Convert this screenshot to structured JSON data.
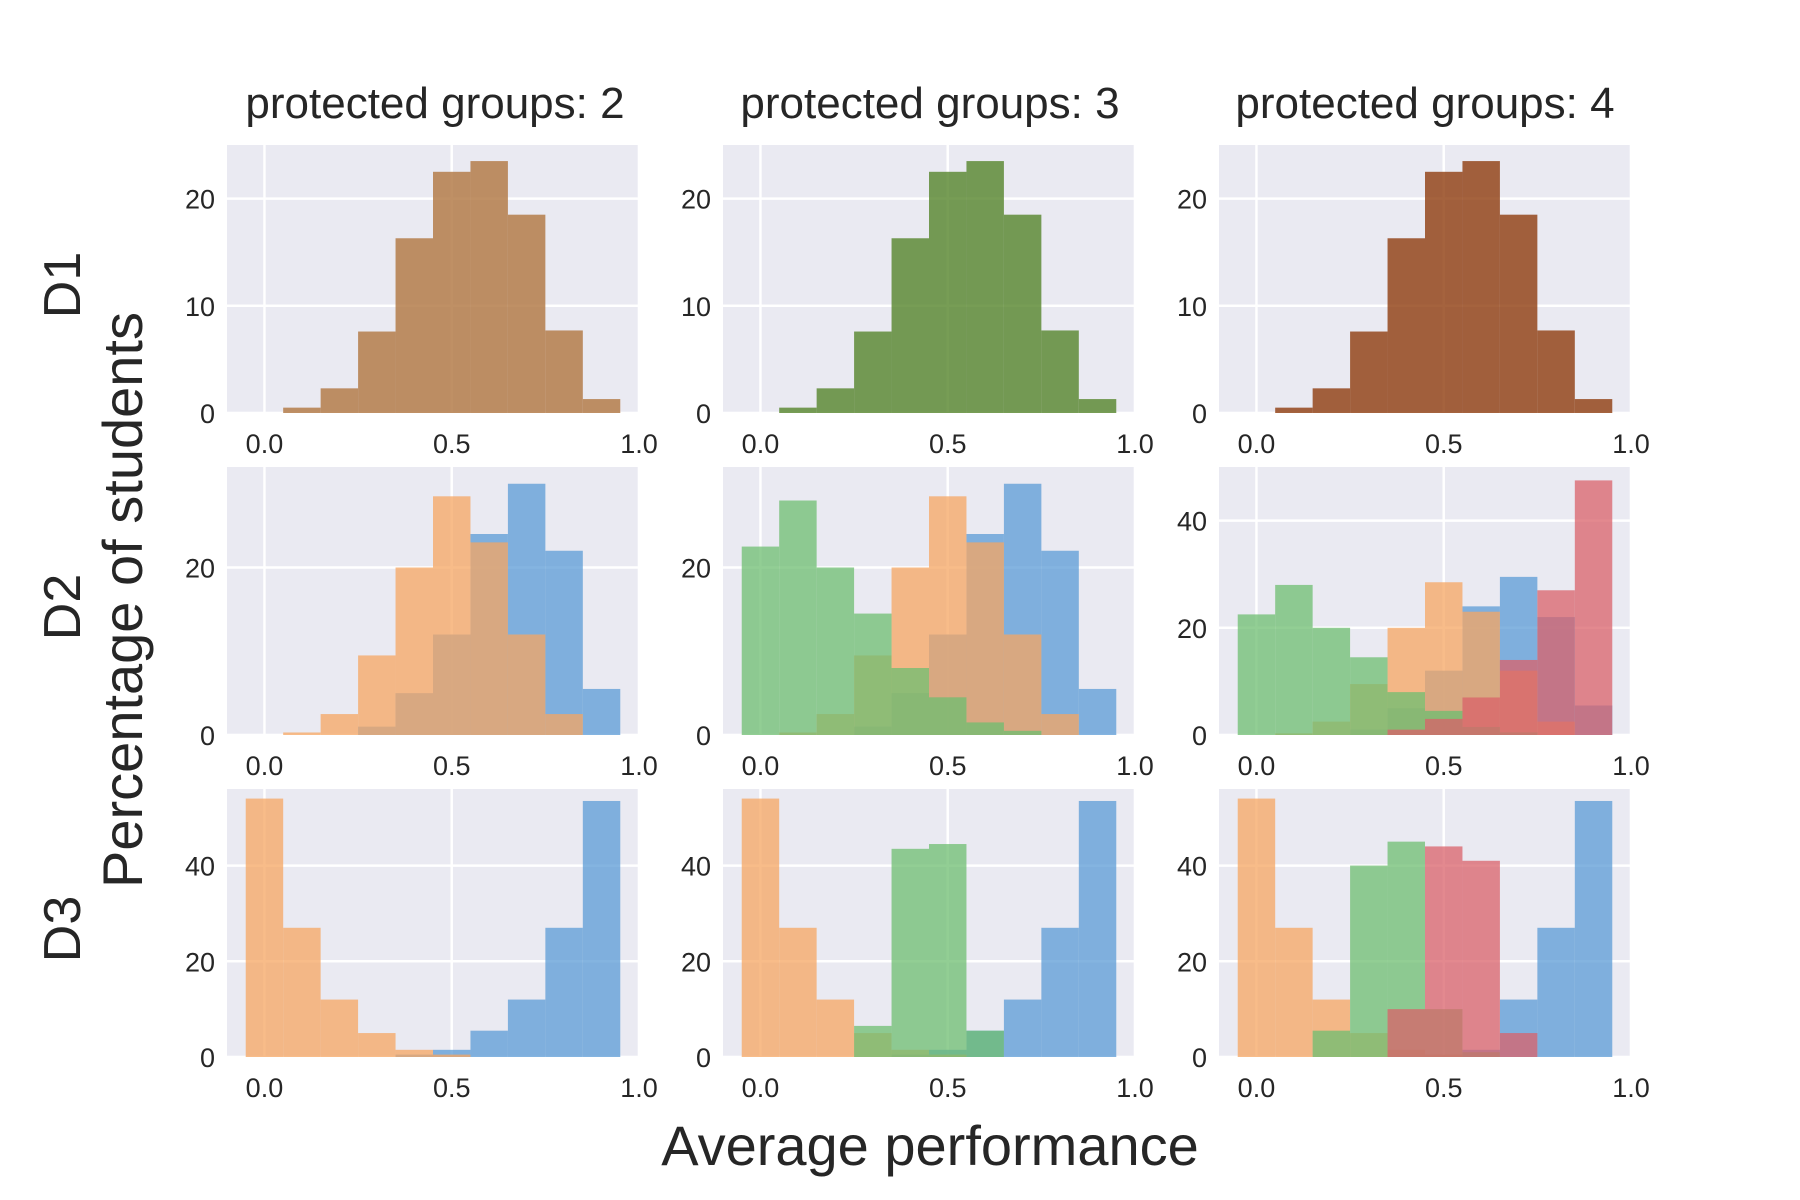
{
  "figure": {
    "xlabel": "Average performance",
    "ylabel": "Percentage of students",
    "column_titles": [
      "protected groups: 2",
      "protected groups: 3",
      "protected groups: 4"
    ],
    "row_labels": [
      "D1",
      "D2",
      "D3"
    ]
  },
  "colors": {
    "blue": "#5b9bd5",
    "orange": "#f5a662",
    "green": "#6dbd70",
    "red": "#d9626a",
    "d1_brown": "#b47c4a",
    "d1_green": "#55852a",
    "d1_sienna": "#8e3c0e"
  },
  "chart_data": [
    {
      "type": "bar",
      "row": "D1",
      "column": "protected groups: 2",
      "xlim": [
        -0.1,
        1.0
      ],
      "ylim": [
        0,
        25
      ],
      "xticks": [
        "0.0",
        "0.5",
        "1.0"
      ],
      "yticks": [
        "0",
        "10",
        "20"
      ],
      "series": [
        {
          "name": "all",
          "color": "d1_brown",
          "opacity": 0.85,
          "bins": [
            [
              0.05,
              0.15,
              0.5
            ],
            [
              0.15,
              0.25,
              2.3
            ],
            [
              0.25,
              0.35,
              7.6
            ],
            [
              0.35,
              0.45,
              16.3
            ],
            [
              0.45,
              0.55,
              22.5
            ],
            [
              0.55,
              0.65,
              23.5
            ],
            [
              0.65,
              0.75,
              18.5
            ],
            [
              0.75,
              0.85,
              7.7
            ],
            [
              0.85,
              0.95,
              1.3
            ]
          ]
        }
      ]
    },
    {
      "type": "bar",
      "row": "D1",
      "column": "protected groups: 3",
      "xlim": [
        -0.1,
        1.0
      ],
      "ylim": [
        0,
        25
      ],
      "xticks": [
        "0.0",
        "0.5",
        "1.0"
      ],
      "yticks": [
        "0",
        "10",
        "20"
      ],
      "series": [
        {
          "name": "all",
          "color": "d1_green",
          "opacity": 0.8,
          "bins": [
            [
              0.05,
              0.15,
              0.5
            ],
            [
              0.15,
              0.25,
              2.3
            ],
            [
              0.25,
              0.35,
              7.6
            ],
            [
              0.35,
              0.45,
              16.3
            ],
            [
              0.45,
              0.55,
              22.5
            ],
            [
              0.55,
              0.65,
              23.5
            ],
            [
              0.65,
              0.75,
              18.5
            ],
            [
              0.75,
              0.85,
              7.7
            ],
            [
              0.85,
              0.95,
              1.3
            ]
          ]
        }
      ]
    },
    {
      "type": "bar",
      "row": "D1",
      "column": "protected groups: 4",
      "xlim": [
        -0.1,
        1.0
      ],
      "ylim": [
        0,
        25
      ],
      "xticks": [
        "0.0",
        "0.5",
        "1.0"
      ],
      "yticks": [
        "0",
        "10",
        "20"
      ],
      "series": [
        {
          "name": "all",
          "color": "d1_sienna",
          "opacity": 0.8,
          "bins": [
            [
              0.05,
              0.15,
              0.5
            ],
            [
              0.15,
              0.25,
              2.3
            ],
            [
              0.25,
              0.35,
              7.6
            ],
            [
              0.35,
              0.45,
              16.3
            ],
            [
              0.45,
              0.55,
              22.5
            ],
            [
              0.55,
              0.65,
              23.5
            ],
            [
              0.65,
              0.75,
              18.5
            ],
            [
              0.75,
              0.85,
              7.7
            ],
            [
              0.85,
              0.95,
              1.3
            ]
          ]
        }
      ]
    },
    {
      "type": "bar",
      "row": "D2",
      "column": "protected groups: 2",
      "xlim": [
        -0.1,
        1.0
      ],
      "ylim": [
        0,
        32
      ],
      "xticks": [
        "0.0",
        "0.5",
        "1.0"
      ],
      "yticks": [
        "0",
        "20"
      ],
      "series": [
        {
          "name": "group blue",
          "color": "blue",
          "opacity": 0.75,
          "bins": [
            [
              0.25,
              0.35,
              1.0
            ],
            [
              0.35,
              0.45,
              5.0
            ],
            [
              0.45,
              0.55,
              12.0
            ],
            [
              0.55,
              0.65,
              24.0
            ],
            [
              0.65,
              0.75,
              30.0
            ],
            [
              0.75,
              0.85,
              22.0
            ],
            [
              0.85,
              0.95,
              5.5
            ]
          ]
        },
        {
          "name": "group orange",
          "color": "orange",
          "opacity": 0.75,
          "bins": [
            [
              0.05,
              0.15,
              0.3
            ],
            [
              0.15,
              0.25,
              2.5
            ],
            [
              0.25,
              0.35,
              9.5
            ],
            [
              0.35,
              0.45,
              20.0
            ],
            [
              0.45,
              0.55,
              28.5
            ],
            [
              0.55,
              0.65,
              23.0
            ],
            [
              0.65,
              0.75,
              12.0
            ],
            [
              0.75,
              0.85,
              2.5
            ]
          ]
        }
      ]
    },
    {
      "type": "bar",
      "row": "D2",
      "column": "protected groups: 3",
      "xlim": [
        -0.1,
        1.0
      ],
      "ylim": [
        0,
        32
      ],
      "xticks": [
        "0.0",
        "0.5",
        "1.0"
      ],
      "yticks": [
        "0",
        "20"
      ],
      "series": [
        {
          "name": "group blue",
          "color": "blue",
          "opacity": 0.75,
          "bins": [
            [
              0.25,
              0.35,
              1.0
            ],
            [
              0.35,
              0.45,
              5.0
            ],
            [
              0.45,
              0.55,
              12.0
            ],
            [
              0.55,
              0.65,
              24.0
            ],
            [
              0.65,
              0.75,
              30.0
            ],
            [
              0.75,
              0.85,
              22.0
            ],
            [
              0.85,
              0.95,
              5.5
            ]
          ]
        },
        {
          "name": "group orange",
          "color": "orange",
          "opacity": 0.75,
          "bins": [
            [
              0.05,
              0.15,
              0.3
            ],
            [
              0.15,
              0.25,
              2.5
            ],
            [
              0.25,
              0.35,
              9.5
            ],
            [
              0.35,
              0.45,
              20.0
            ],
            [
              0.45,
              0.55,
              28.5
            ],
            [
              0.55,
              0.65,
              23.0
            ],
            [
              0.65,
              0.75,
              12.0
            ],
            [
              0.75,
              0.85,
              2.5
            ]
          ]
        },
        {
          "name": "group green",
          "color": "green",
          "opacity": 0.75,
          "bins": [
            [
              -0.05,
              0.05,
              22.5
            ],
            [
              0.05,
              0.15,
              28.0
            ],
            [
              0.15,
              0.25,
              20.0
            ],
            [
              0.25,
              0.35,
              14.5
            ],
            [
              0.35,
              0.45,
              8.0
            ],
            [
              0.45,
              0.55,
              4.5
            ],
            [
              0.55,
              0.65,
              1.5
            ],
            [
              0.65,
              0.75,
              0.5
            ]
          ]
        }
      ]
    },
    {
      "type": "bar",
      "row": "D2",
      "column": "protected groups: 4",
      "xlim": [
        -0.1,
        1.0
      ],
      "ylim": [
        0,
        50
      ],
      "xticks": [
        "0.0",
        "0.5",
        "1.0"
      ],
      "yticks": [
        "0",
        "20",
        "40"
      ],
      "series": [
        {
          "name": "group blue",
          "color": "blue",
          "opacity": 0.75,
          "bins": [
            [
              0.25,
              0.35,
              1.0
            ],
            [
              0.35,
              0.45,
              5.0
            ],
            [
              0.45,
              0.55,
              12.0
            ],
            [
              0.55,
              0.65,
              24.0
            ],
            [
              0.65,
              0.75,
              29.5
            ],
            [
              0.75,
              0.85,
              22.0
            ],
            [
              0.85,
              0.95,
              5.5
            ]
          ]
        },
        {
          "name": "group orange",
          "color": "orange",
          "opacity": 0.75,
          "bins": [
            [
              0.05,
              0.15,
              0.3
            ],
            [
              0.15,
              0.25,
              2.5
            ],
            [
              0.25,
              0.35,
              9.5
            ],
            [
              0.35,
              0.45,
              20.0
            ],
            [
              0.45,
              0.55,
              28.5
            ],
            [
              0.55,
              0.65,
              23.0
            ],
            [
              0.65,
              0.75,
              12.0
            ],
            [
              0.75,
              0.85,
              2.5
            ]
          ]
        },
        {
          "name": "group green",
          "color": "green",
          "opacity": 0.75,
          "bins": [
            [
              -0.05,
              0.05,
              22.5
            ],
            [
              0.05,
              0.15,
              28.0
            ],
            [
              0.15,
              0.25,
              20.0
            ],
            [
              0.25,
              0.35,
              14.5
            ],
            [
              0.35,
              0.45,
              8.0
            ],
            [
              0.45,
              0.55,
              4.5
            ],
            [
              0.55,
              0.65,
              1.5
            ],
            [
              0.65,
              0.75,
              0.5
            ]
          ]
        },
        {
          "name": "group red",
          "color": "red",
          "opacity": 0.75,
          "bins": [
            [
              0.35,
              0.45,
              1.0
            ],
            [
              0.45,
              0.55,
              3.0
            ],
            [
              0.55,
              0.65,
              7.0
            ],
            [
              0.65,
              0.75,
              14.0
            ],
            [
              0.75,
              0.85,
              27.0
            ],
            [
              0.85,
              0.95,
              47.5
            ]
          ]
        }
      ]
    },
    {
      "type": "bar",
      "row": "D3",
      "column": "protected groups: 2",
      "xlim": [
        -0.1,
        1.0
      ],
      "ylim": [
        0,
        56
      ],
      "xticks": [
        "0.0",
        "0.5",
        "1.0"
      ],
      "yticks": [
        "0",
        "20",
        "40"
      ],
      "series": [
        {
          "name": "group blue",
          "color": "blue",
          "opacity": 0.75,
          "bins": [
            [
              0.35,
              0.45,
              0.5
            ],
            [
              0.45,
              0.55,
              1.5
            ],
            [
              0.55,
              0.65,
              5.5
            ],
            [
              0.65,
              0.75,
              12.0
            ],
            [
              0.75,
              0.85,
              27.0
            ],
            [
              0.85,
              0.95,
              53.5
            ]
          ]
        },
        {
          "name": "group orange",
          "color": "orange",
          "opacity": 0.75,
          "bins": [
            [
              -0.05,
              0.05,
              54.0
            ],
            [
              0.05,
              0.15,
              27.0
            ],
            [
              0.15,
              0.25,
              12.0
            ],
            [
              0.25,
              0.35,
              5.0
            ],
            [
              0.35,
              0.45,
              1.5
            ],
            [
              0.45,
              0.55,
              0.5
            ]
          ]
        }
      ]
    },
    {
      "type": "bar",
      "row": "D3",
      "column": "protected groups: 3",
      "xlim": [
        -0.1,
        1.0
      ],
      "ylim": [
        0,
        56
      ],
      "xticks": [
        "0.0",
        "0.5",
        "1.0"
      ],
      "yticks": [
        "0",
        "20",
        "40"
      ],
      "series": [
        {
          "name": "group blue",
          "color": "blue",
          "opacity": 0.75,
          "bins": [
            [
              0.35,
              0.45,
              0.5
            ],
            [
              0.45,
              0.55,
              1.5
            ],
            [
              0.55,
              0.65,
              5.5
            ],
            [
              0.65,
              0.75,
              12.0
            ],
            [
              0.75,
              0.85,
              27.0
            ],
            [
              0.85,
              0.95,
              53.5
            ]
          ]
        },
        {
          "name": "group orange",
          "color": "orange",
          "opacity": 0.75,
          "bins": [
            [
              -0.05,
              0.05,
              54.0
            ],
            [
              0.05,
              0.15,
              27.0
            ],
            [
              0.15,
              0.25,
              12.0
            ],
            [
              0.25,
              0.35,
              5.0
            ],
            [
              0.35,
              0.45,
              1.5
            ],
            [
              0.45,
              0.55,
              0.5
            ]
          ]
        },
        {
          "name": "group green",
          "color": "green",
          "opacity": 0.75,
          "bins": [
            [
              0.25,
              0.35,
              6.5
            ],
            [
              0.35,
              0.45,
              43.5
            ],
            [
              0.45,
              0.55,
              44.5
            ],
            [
              0.55,
              0.65,
              5.5
            ]
          ]
        }
      ]
    },
    {
      "type": "bar",
      "row": "D3",
      "column": "protected groups: 4",
      "xlim": [
        -0.1,
        1.0
      ],
      "ylim": [
        0,
        56
      ],
      "xticks": [
        "0.0",
        "0.5",
        "1.0"
      ],
      "yticks": [
        "0",
        "20",
        "40"
      ],
      "series": [
        {
          "name": "group blue",
          "color": "blue",
          "opacity": 0.75,
          "bins": [
            [
              0.55,
              0.65,
              1.5
            ],
            [
              0.65,
              0.75,
              12.0
            ],
            [
              0.75,
              0.85,
              27.0
            ],
            [
              0.85,
              0.95,
              53.5
            ]
          ]
        },
        {
          "name": "group orange",
          "color": "orange",
          "opacity": 0.75,
          "bins": [
            [
              -0.05,
              0.05,
              54.0
            ],
            [
              0.05,
              0.15,
              27.0
            ],
            [
              0.15,
              0.25,
              12.0
            ],
            [
              0.25,
              0.35,
              5.0
            ],
            [
              0.35,
              0.45,
              1.5
            ],
            [
              0.45,
              0.55,
              0.5
            ]
          ]
        },
        {
          "name": "group green",
          "color": "green",
          "opacity": 0.75,
          "bins": [
            [
              0.15,
              0.25,
              5.5
            ],
            [
              0.25,
              0.35,
              40.0
            ],
            [
              0.35,
              0.45,
              45.0
            ],
            [
              0.45,
              0.55,
              10.0
            ],
            [
              0.55,
              0.65,
              1.0
            ]
          ]
        },
        {
          "name": "group red",
          "color": "red",
          "opacity": 0.75,
          "bins": [
            [
              0.35,
              0.45,
              10.0
            ],
            [
              0.45,
              0.55,
              44.0
            ],
            [
              0.55,
              0.65,
              41.0
            ],
            [
              0.65,
              0.75,
              5.0
            ]
          ]
        }
      ]
    }
  ]
}
